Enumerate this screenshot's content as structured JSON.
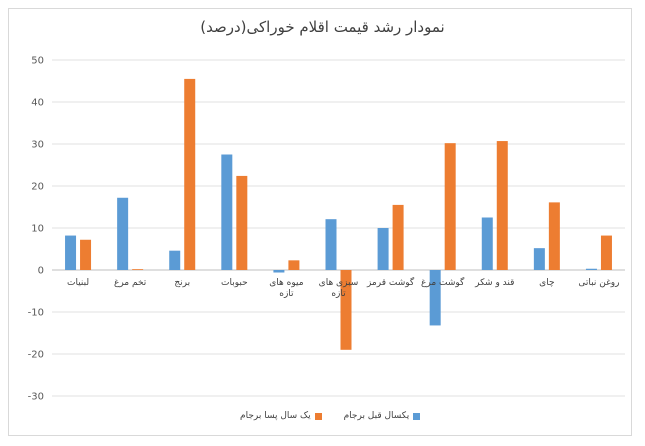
{
  "chart_data": {
    "type": "bar",
    "title": "نمودار رشد قیمت اقلام خوراکی(درصد)",
    "categories": [
      "لبنیات",
      "تخم مرغ",
      "برنج",
      "حبوبات",
      "میوه های تازه",
      "سبزی های تازه",
      "گوشت قرمز",
      "گوشت مرغ",
      "قند و شکر",
      "چای",
      "روغن نباتی"
    ],
    "series": [
      {
        "name": "یکسال قبل برجام",
        "color": "#5b9bd5",
        "values": [
          8.2,
          17.2,
          4.6,
          27.5,
          -0.6,
          12.1,
          10.0,
          -13.2,
          12.5,
          5.2,
          0.3
        ]
      },
      {
        "name": "یک سال پسا برجام",
        "color": "#ed7d31",
        "values": [
          7.2,
          0.2,
          45.5,
          22.4,
          2.3,
          -19.0,
          15.5,
          30.2,
          30.7,
          16.1,
          8.2
        ]
      }
    ],
    "ylim": [
      -30,
      50
    ],
    "yticks": [
      50,
      40,
      30,
      20,
      10,
      0,
      -10,
      -20,
      -30
    ],
    "grid": true,
    "legend_position": "bottom"
  }
}
